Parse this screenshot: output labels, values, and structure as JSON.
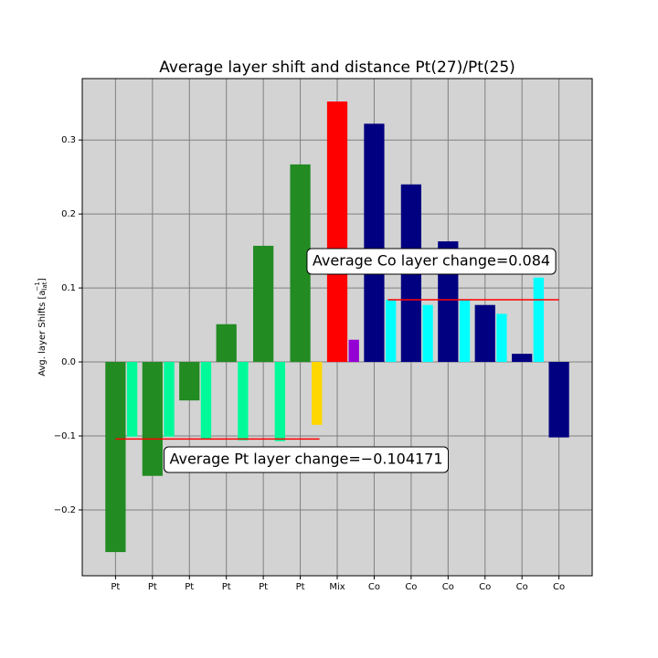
{
  "chart_data": {
    "type": "bar",
    "title": "Average layer shift and distance Pt(27)/Pt(25)",
    "ylabel": {
      "text": "Avg. layer Shifts [a",
      "sub": "lat",
      "sup": "−1",
      "close": "]"
    },
    "categories": [
      "Pt",
      "Pt",
      "Pt",
      "Pt",
      "Pt",
      "Pt",
      "Mix",
      "Co",
      "Co",
      "Co",
      "Co",
      "Co",
      "Co"
    ],
    "series": [
      {
        "colors": [
          "#228b22",
          "#228b22",
          "#228b22",
          "#228b22",
          "#228b22",
          "#228b22",
          "#ff0000",
          "#000080",
          "#000080",
          "#000080",
          "#000080",
          "#000080",
          "#000080"
        ],
        "values": [
          -0.257,
          -0.154,
          -0.052,
          0.051,
          0.157,
          0.267,
          0.352,
          0.322,
          0.24,
          0.163,
          0.077,
          0.011,
          -0.102
        ]
      },
      {
        "colors": [
          "#00fa9a",
          "#00fa9a",
          "#00fa9a",
          "#00fa9a",
          "#00fa9a",
          "#ffd700",
          "#9400d3",
          "#00ffff",
          "#00ffff",
          "#00ffff",
          "#00ffff",
          "#00ffff",
          null
        ],
        "values": [
          -0.101,
          -0.101,
          -0.104,
          -0.106,
          -0.107,
          -0.085,
          0.03,
          0.084,
          0.077,
          0.084,
          0.065,
          0.114,
          null
        ]
      }
    ],
    "hlines": [
      {
        "value": -0.104171,
        "color": "#ff0000",
        "annotation": "Average Pt layer change=−0.104171"
      },
      {
        "value": 0.084,
        "color": "#ff0000",
        "annotation": "Average Co layer change=0.084"
      }
    ],
    "ylim": [
      -0.289,
      0.383
    ],
    "yticks": [
      {
        "value": -0.2,
        "label": "−0.2"
      },
      {
        "value": -0.1,
        "label": "−0.1"
      },
      {
        "value": 0,
        "label": "0.0"
      },
      0.1,
      0.2,
      0.3
    ],
    "grid": true
  }
}
